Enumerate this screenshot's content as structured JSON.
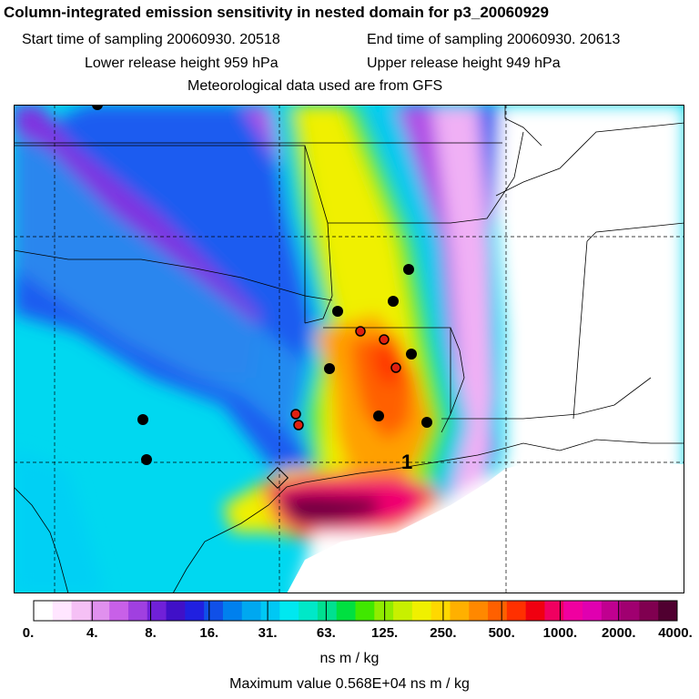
{
  "header": {
    "title": "Column-integrated emission sensitivity in nested domain for p3_20060929",
    "start_label": "Start time of sampling 20060930. 20518",
    "end_label": "End time of sampling 20060930. 20613",
    "lower_label": "Lower release height  959 hPa",
    "upper_label": "Upper release height  949 hPa",
    "met_label": "Meteorological data used are from GFS"
  },
  "map": {
    "release_label": "1",
    "station_color": "#000000",
    "highlight_color": "#e02010"
  },
  "colorbar": {
    "ticks": [
      "0.",
      "4.",
      "8.",
      "16.",
      "31.",
      "63.",
      "125.",
      "250.",
      "500.",
      "1000.",
      "2000.",
      "4000."
    ],
    "colors": [
      "#ffffff",
      "#ffe6ff",
      "#f5c0f5",
      "#e090ee",
      "#c860e8",
      "#a040e0",
      "#7020d8",
      "#4010c8",
      "#2020e0",
      "#1050e8",
      "#0080ee",
      "#00a8f0",
      "#00c8f4",
      "#00e8f0",
      "#00e8c8",
      "#00e090",
      "#00e040",
      "#40e800",
      "#90ec00",
      "#c8f000",
      "#f0f000",
      "#ffd800",
      "#ffb000",
      "#ff8800",
      "#ff6000",
      "#ff3000",
      "#f00010",
      "#f00060",
      "#f000a0",
      "#e000b0",
      "#c00090",
      "#a00070",
      "#800050",
      "#500030"
    ],
    "units": "ns m / kg",
    "max_value": "Maximum value  0.568E+04 ns m / kg"
  }
}
